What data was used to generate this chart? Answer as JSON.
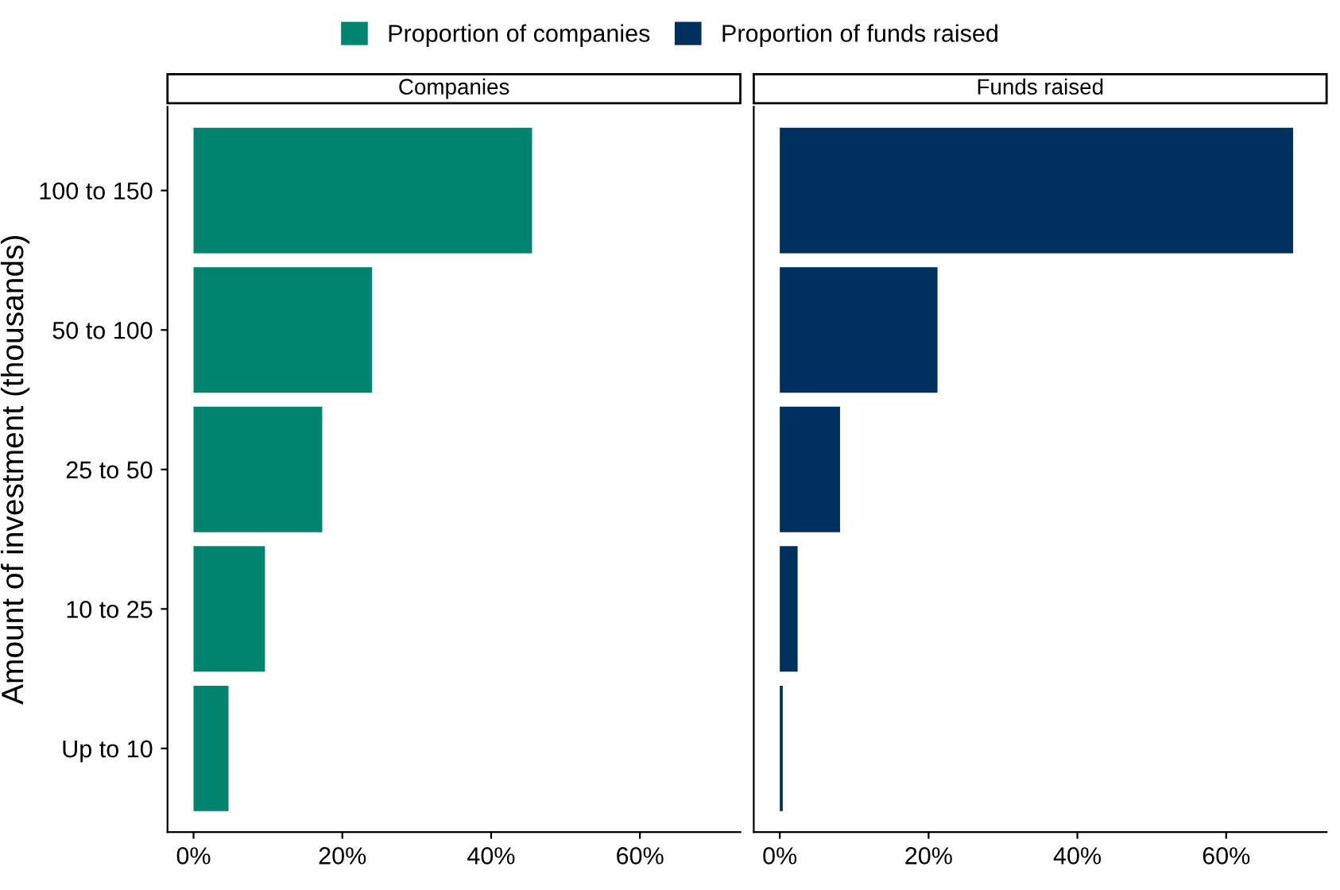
{
  "chart_data": [
    {
      "type": "bar",
      "orientation": "horizontal",
      "title": "Companies",
      "ylabel": "Amount of investment (thousands)",
      "categories": [
        "100 to 150",
        "50 to 100",
        "25 to 50",
        "10 to 25",
        "Up to 10"
      ],
      "series": [
        {
          "name": "Proportion of companies",
          "color": "#008470",
          "values": [
            45.5,
            24.0,
            17.3,
            9.6,
            4.7
          ]
        }
      ],
      "xlim": [
        -3.5,
        73.5
      ],
      "xticks": [
        {
          "value": 0,
          "label": "0%"
        },
        {
          "value": 20,
          "label": "20%"
        },
        {
          "value": 40,
          "label": "40%"
        },
        {
          "value": 60,
          "label": "60%"
        }
      ],
      "grid": false,
      "legend": "top"
    },
    {
      "type": "bar",
      "orientation": "horizontal",
      "title": "Funds raised",
      "categories": [
        null,
        null,
        null,
        null,
        null
      ],
      "series": [
        {
          "name": "Proportion of funds raised",
          "color": "#00305d",
          "values": [
            69,
            21.2,
            8.1,
            2.4,
            0.4
          ]
        }
      ],
      "xlim": [
        -3.5,
        73.5
      ],
      "xticks": [
        {
          "value": 0,
          "label": "0%"
        },
        {
          "value": 20,
          "label": "20%"
        },
        {
          "value": 40,
          "label": "40%"
        },
        {
          "value": 60,
          "label": "60%"
        }
      ],
      "grid": false,
      "legend": "top",
      "tick_labels": "x"
    }
  ]
}
